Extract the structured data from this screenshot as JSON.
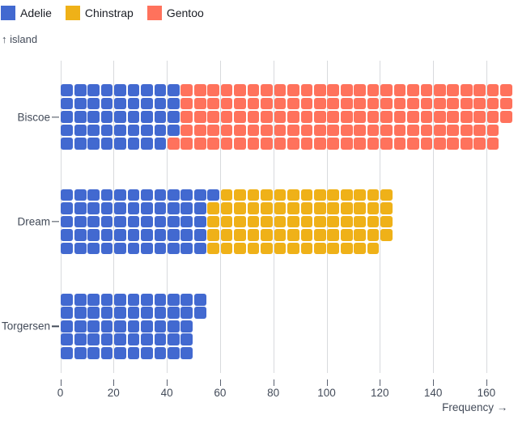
{
  "figure": {
    "y_axis_title": "↑ island",
    "x_axis_title": "Frequency →"
  },
  "legend": {
    "items": [
      {
        "label": "Adelie",
        "color": "#4269d0"
      },
      {
        "label": "Chinstrap",
        "color": "#efb118"
      },
      {
        "label": "Gentoo",
        "color": "#ff725c"
      }
    ]
  },
  "colors": {
    "adelie": "#4269d0",
    "chinstrap": "#efb118",
    "gentoo": "#ff725c",
    "grid": "#d8dadd",
    "axis_text": "#434b59",
    "legend_text": "#1b1e25",
    "background": "#ffffff"
  },
  "chart_data": {
    "type": "bar",
    "variant": "waffle-unit-chart-horizontal",
    "title": "",
    "xlabel": "Frequency →",
    "ylabel": "↑ island",
    "unit_per_cell": 1,
    "rows_per_band": 5,
    "fill_order": "columns left-to-right, top-to-bottom within each column",
    "grid": true,
    "legend_position": "top-left",
    "x_ticks": [
      0,
      20,
      40,
      60,
      80,
      100,
      120,
      140,
      160
    ],
    "xlim": [
      0,
      170
    ],
    "categories": [
      "Biscoe",
      "Dream",
      "Torgersen"
    ],
    "series": [
      {
        "name": "Adelie",
        "color": "#4269d0",
        "values": [
          44,
          56,
          52
        ]
      },
      {
        "name": "Chinstrap",
        "color": "#efb118",
        "values": [
          0,
          68,
          0
        ]
      },
      {
        "name": "Gentoo",
        "color": "#ff725c",
        "values": [
          124,
          0,
          0
        ]
      }
    ],
    "totals": {
      "Biscoe": 168,
      "Dream": 124,
      "Torgersen": 52
    }
  }
}
